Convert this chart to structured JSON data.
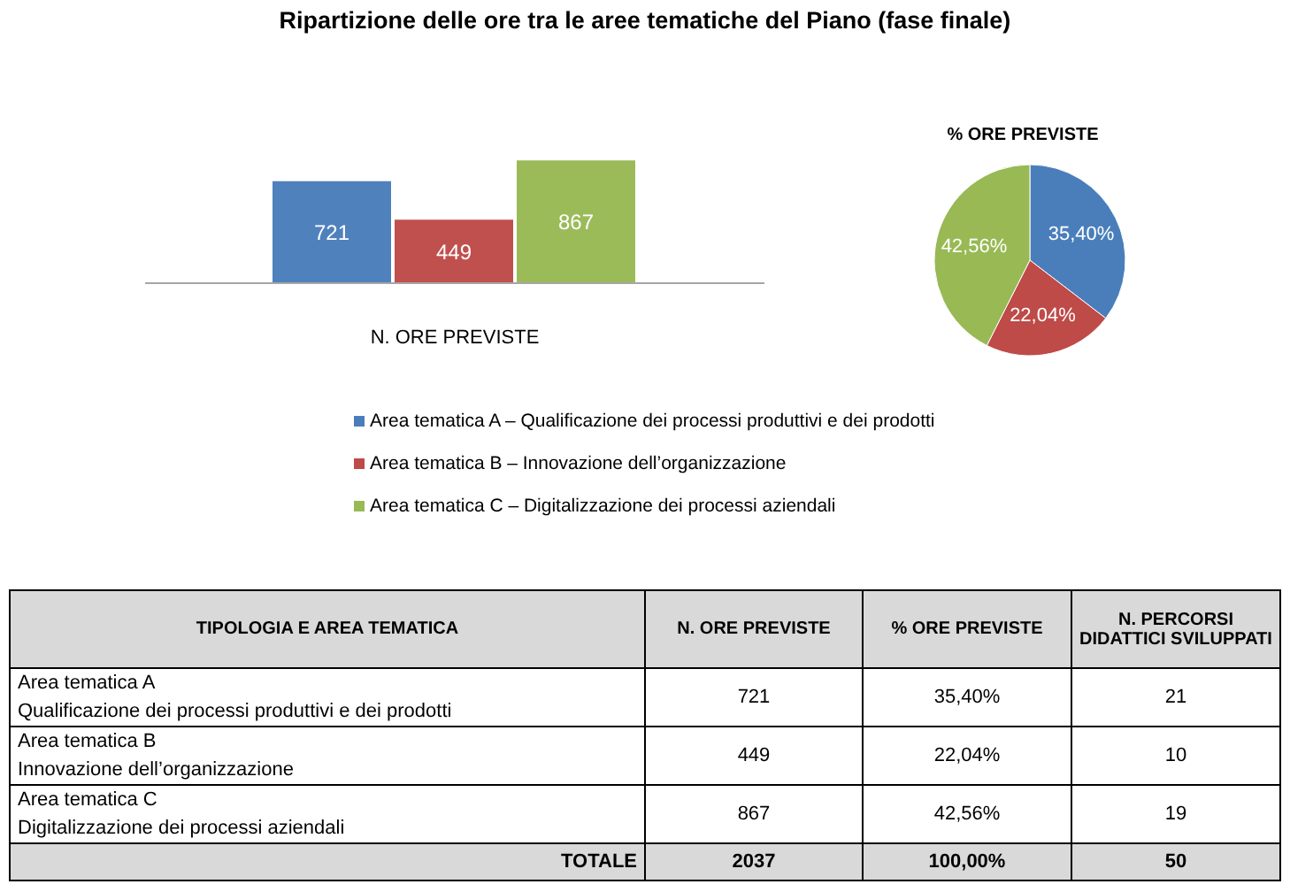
{
  "chart_data": [
    {
      "type": "bar",
      "title": "Ripartizione delle ore tra le aree tematiche del Piano (fase finale)",
      "xlabel": "N. ORE PREVISTE",
      "categories": [
        null,
        null,
        null
      ],
      "values": [
        721,
        449,
        867
      ],
      "colors": [
        "#4f81bd",
        "#c0504d",
        "#9bbb59"
      ],
      "data_labels": true
    },
    {
      "type": "pie",
      "title": "% ORE PREVISTE",
      "categories": [
        "Area tematica A – Qualificazione dei processi produttivi e dei prodotti",
        "Area tematica B – Innovazione dell’organizzazione",
        "Area tematica C – Digitalizzazione dei processi aziendali"
      ],
      "values": [
        35.4,
        22.04,
        42.56
      ],
      "colors": [
        "#4a7ebb",
        "#be4b48",
        "#98b954"
      ],
      "value_labels": [
        "35,40%",
        "22,04%",
        "42,56%"
      ],
      "legend": "bottom"
    },
    {
      "type": "other",
      "categories": [
        "Area tematica A\nQualificazione dei processi produttivi e dei prodotti",
        "Area tematica B\nInnovazione dell’organizzazione",
        "Area tematica C\nDigitalizzazione dei processi aziendali"
      ],
      "series": [
        {
          "name": "N. ORE PREVISTE",
          "values": [
            721,
            449,
            867
          ]
        },
        {
          "name": "% ORE PREVISTE",
          "values": [
            35.4,
            22.04,
            42.56
          ],
          "value_labels": [
            "35,40%",
            "22,04%",
            "42,56%"
          ]
        },
        {
          "name": "N. PERCORSI DIDATTICI SVILUPPATI",
          "values": [
            21,
            10,
            19
          ]
        }
      ],
      "data_labels": true,
      "totals": [
        "2037",
        "100,00%",
        "50"
      ],
      "annotations": [
        "TIPOLOGIA E AREA TEMATICA",
        "TOTALE"
      ]
    }
  ]
}
